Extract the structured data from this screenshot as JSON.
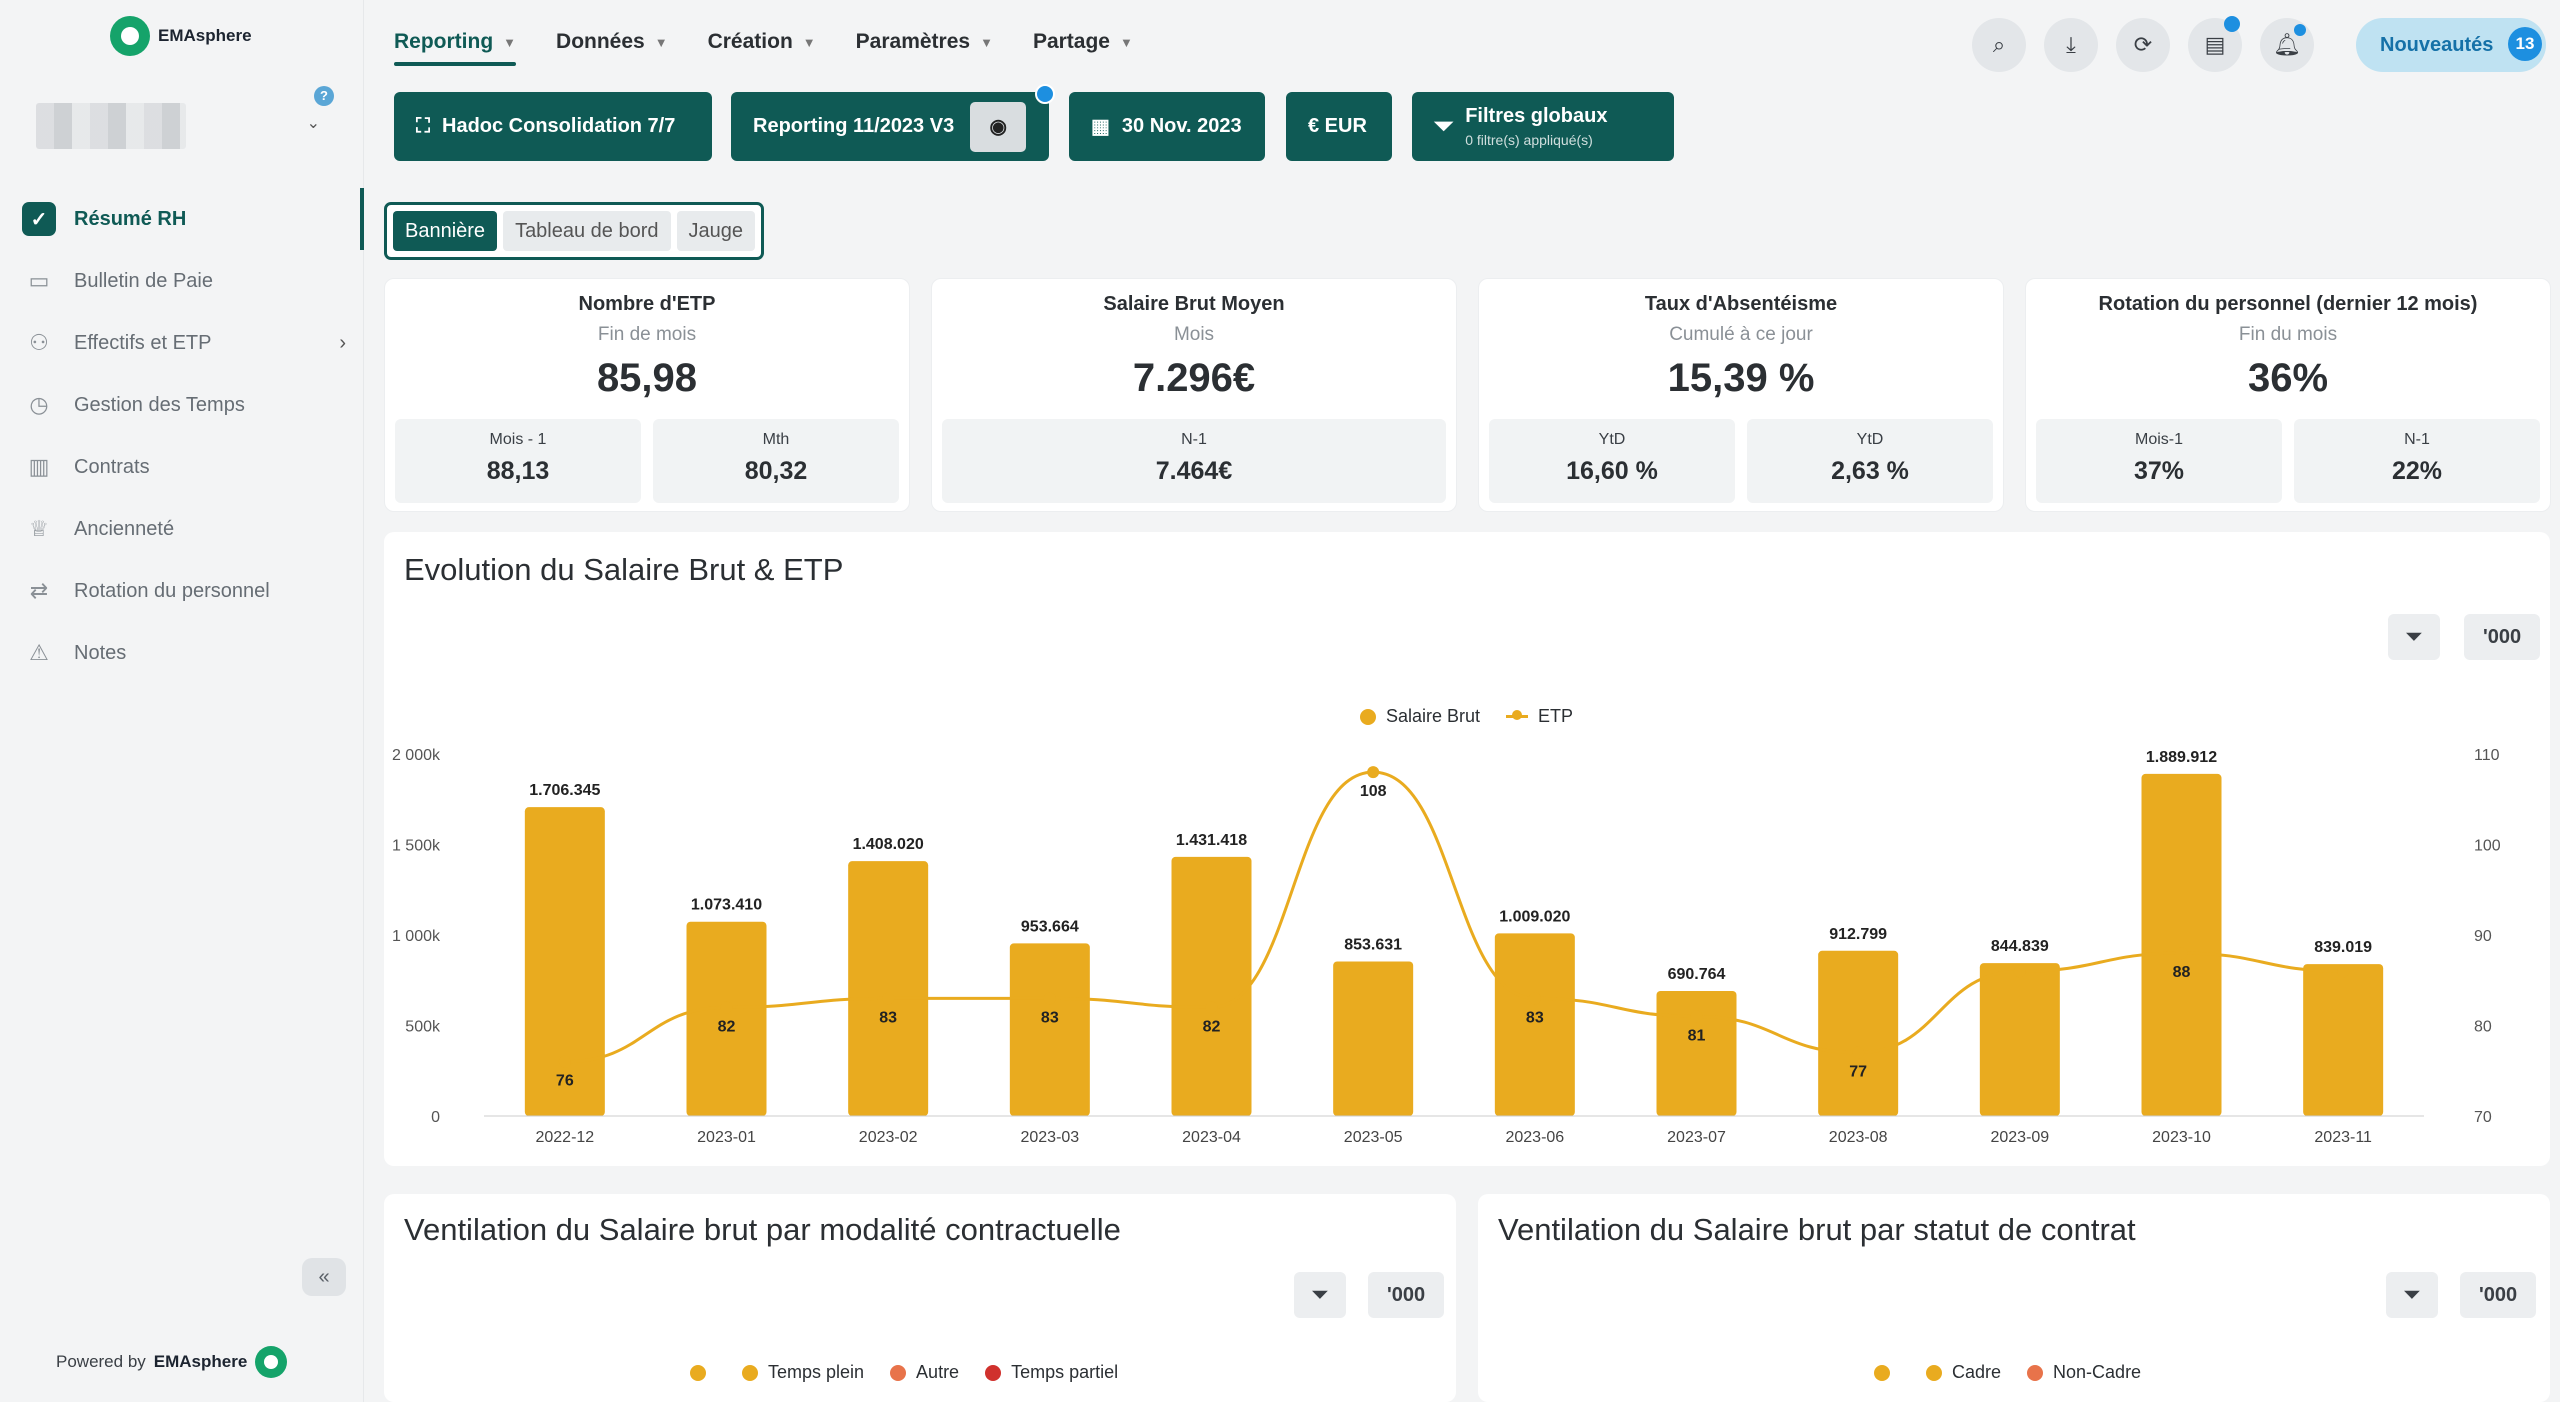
{
  "app": {
    "logo_text": "EMAsphere",
    "powered_by": "Powered by",
    "powered_brand": "EMAsphere"
  },
  "sidebar": {
    "help": "?",
    "items": [
      {
        "label": "Résumé RH",
        "icon": "check-shield-icon"
      },
      {
        "label": "Bulletin de Paie",
        "icon": "wallet-icon"
      },
      {
        "label": "Effectifs et ETP",
        "icon": "users-icon"
      },
      {
        "label": "Gestion des Temps",
        "icon": "clock-icon"
      },
      {
        "label": "Contrats",
        "icon": "books-icon"
      },
      {
        "label": "Ancienneté",
        "icon": "cake-icon"
      },
      {
        "label": "Rotation du personnel",
        "icon": "swap-icon"
      },
      {
        "label": "Notes",
        "icon": "warning-icon"
      }
    ]
  },
  "topmenu": [
    "Reporting",
    "Données",
    "Création",
    "Paramètres",
    "Partage"
  ],
  "news": {
    "label": "Nouveautés",
    "count": "13"
  },
  "toolbar": {
    "consolidation": "Hadoc Consolidation  7/7",
    "reporting": "Reporting 11/2023 V3",
    "date": "30 Nov. 2023",
    "currency": "€ EUR",
    "filters_title": "Filtres globaux",
    "filters_sub": "0 filtre(s) appliqué(s)"
  },
  "views": [
    "Bannière",
    "Tableau de bord",
    "Jauge"
  ],
  "kpis": [
    {
      "title": "Nombre d'ETP",
      "sub": "Fin de mois",
      "value": "85,98",
      "subs": [
        {
          "label": "Mois - 1",
          "value": "88,13"
        },
        {
          "label": "Mth",
          "value": "80,32"
        }
      ]
    },
    {
      "title": "Salaire Brut Moyen",
      "sub": "Mois",
      "value": "7.296€",
      "subs": [
        {
          "label": "N-1",
          "value": "7.464€"
        }
      ]
    },
    {
      "title": "Taux d'Absentéisme",
      "sub": "Cumulé à ce jour",
      "value": "15,39 %",
      "subs": [
        {
          "label": "YtD",
          "value": "16,60 %"
        },
        {
          "label": "YtD",
          "value": "2,63 %"
        }
      ]
    },
    {
      "title": "Rotation du personnel (dernier 12 mois)",
      "sub": "Fin du mois",
      "value": "36%",
      "subs": [
        {
          "label": "Mois-1",
          "value": "37%"
        },
        {
          "label": "N-1",
          "value": "22%"
        }
      ]
    }
  ],
  "main_chart": {
    "title": "Evolution du Salaire Brut & ETP",
    "unit_btn": "'000"
  },
  "chart_data": {
    "type": "bar",
    "categories": [
      "2022-12",
      "2023-01",
      "2023-02",
      "2023-03",
      "2023-04",
      "2023-05",
      "2023-06",
      "2023-07",
      "2023-08",
      "2023-09",
      "2023-10",
      "2023-11"
    ],
    "series": [
      {
        "name": "Salaire Brut",
        "type": "bar",
        "axis": "left",
        "color": "#e9ab1f",
        "values": [
          1706345,
          1073410,
          1408020,
          953664,
          1431418,
          853631,
          1009020,
          690764,
          912799,
          844839,
          1889912,
          839019
        ],
        "labels": [
          "1.706.345",
          "1.073.410",
          "1.408.020",
          "953.664",
          "1.431.418",
          "853.631",
          "1.009.020",
          "690.764",
          "912.799",
          "844.839",
          "1.889.912",
          "839.019"
        ]
      },
      {
        "name": "ETP",
        "type": "line",
        "axis": "right",
        "color": "#e9ab1f",
        "values": [
          76,
          82,
          83,
          83,
          82,
          108,
          83,
          81,
          77,
          86,
          88,
          86
        ],
        "labels": [
          "76",
          "82",
          "83",
          "83",
          "82",
          "108",
          "83",
          "81",
          "77",
          "",
          "88",
          ""
        ]
      }
    ],
    "y_left": {
      "ticks": [
        "0",
        "500k",
        "1 000k",
        "1 500k",
        "2 000k"
      ],
      "range": [
        0,
        2000000
      ]
    },
    "y_right": {
      "ticks": [
        "70",
        "80",
        "90",
        "100",
        "110"
      ],
      "range": [
        70,
        110
      ]
    },
    "legend": "top-center"
  },
  "bottom_left": {
    "title": "Ventilation du Salaire brut par modalité contractuelle",
    "unit_btn": "'000",
    "legend": [
      {
        "label": "",
        "color": "#e9ab1f"
      },
      {
        "label": "Temps plein",
        "color": "#e9ab1f"
      },
      {
        "label": "Autre",
        "color": "#e8734a"
      },
      {
        "label": "Temps partiel",
        "color": "#d0312d"
      }
    ]
  },
  "bottom_right": {
    "title": "Ventilation du Salaire brut par statut de contrat",
    "unit_btn": "'000",
    "legend": [
      {
        "label": "",
        "color": "#e9ab1f"
      },
      {
        "label": "Cadre",
        "color": "#e9ab1f"
      },
      {
        "label": "Non-Cadre",
        "color": "#e8734a"
      }
    ]
  }
}
